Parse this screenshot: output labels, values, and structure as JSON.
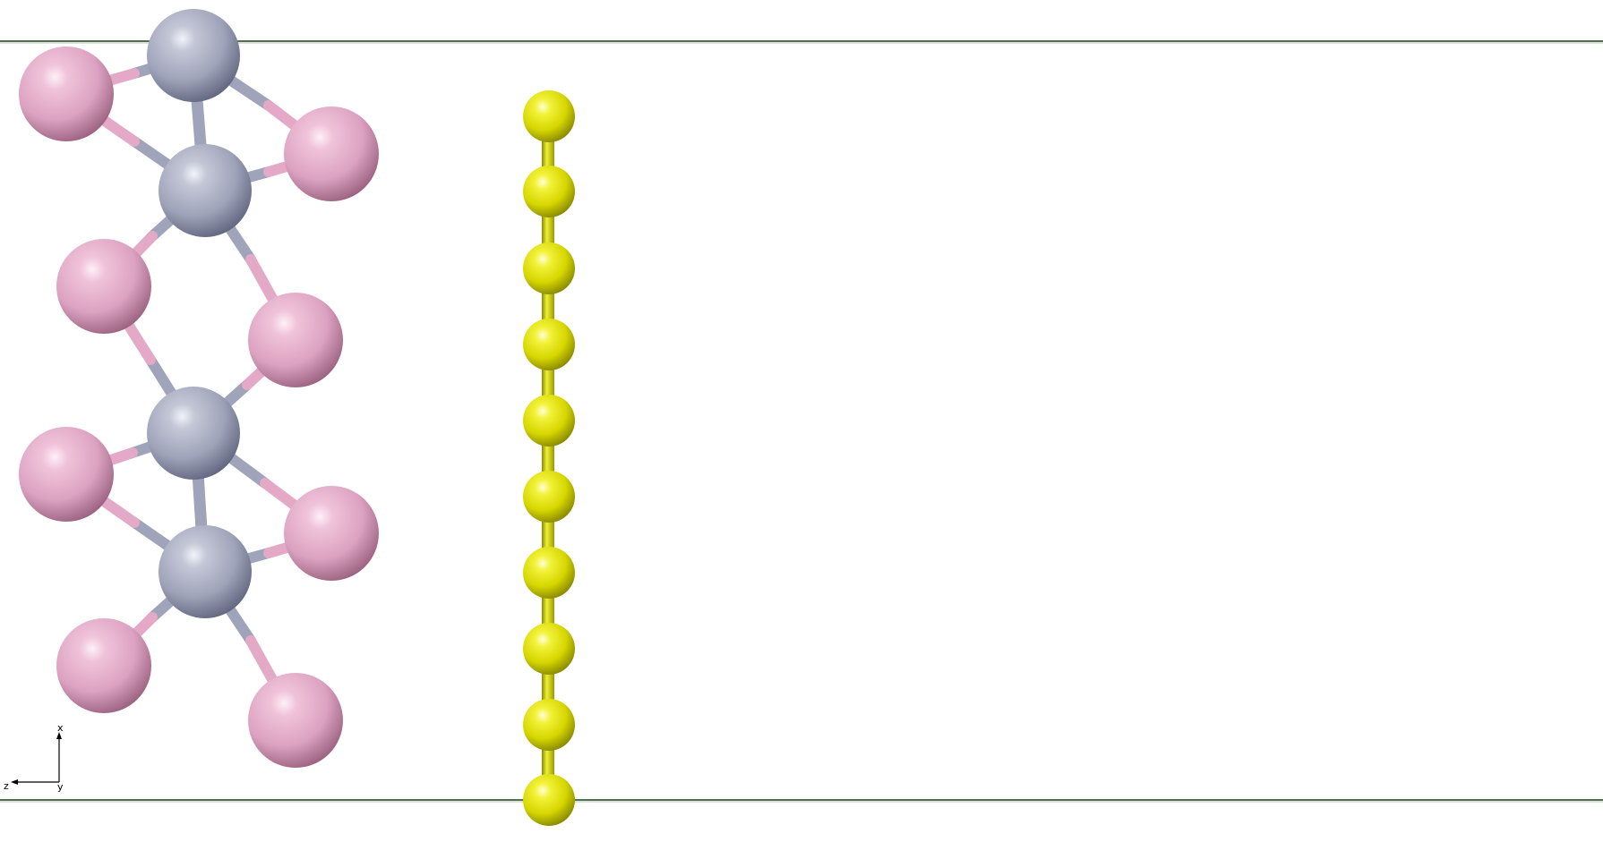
{
  "scene": {
    "background": "#ffffff",
    "cell_line_color": "#5a7a5a",
    "bond_colors": {
      "metal": "#9ea3ba",
      "nonmetal": "#e6aac8",
      "chain": "#c8c810"
    },
    "atom_types": {
      "metal": {
        "color": "#a3a7bd",
        "highlight": "#eeeff6",
        "shade": "#5c607a"
      },
      "nonmetal": {
        "color": "#e2a9c7",
        "highlight": "#fbe9f3",
        "shade": "#9a5f7e"
      },
      "chain": {
        "color": "#e8e800",
        "highlight": "#ffffc8",
        "shade": "#8a8a00"
      }
    }
  },
  "axes": {
    "x_label": "x",
    "y_label": "y",
    "z_label": "z"
  }
}
